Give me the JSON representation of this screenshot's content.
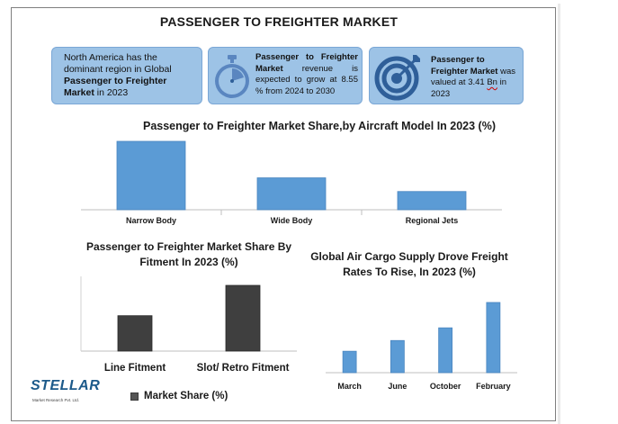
{
  "title": "PASSENGER TO FREIGHTER MARKET",
  "cards": {
    "region": {
      "pre": "North America has the dominant region in Global ",
      "bold": "Passenger to Freighter Market",
      "post": " in 2023"
    },
    "growth": {
      "bold": "Passenger to Freighter Market",
      "post": " revenue is expected to grow at 8.55 % from 2024 to 2030",
      "icon": "stopwatch-icon"
    },
    "valuation": {
      "bold": "Passenger to Freighter Market",
      "pre": " was valued at 3.41 ",
      "unit": "Bn",
      "post": " in 2023",
      "icon": "target-icon"
    }
  },
  "colors": {
    "blue_bar": "#5b9bd5",
    "dark_bar": "#3f3f3f",
    "card": "#9dc3e6"
  },
  "chart_data": [
    {
      "type": "bar",
      "title": "Passenger to Freighter Market Share,by Aircraft Model In 2023 (%)",
      "categories": [
        "Narrow Body",
        "Wide Body",
        "Regional Jets"
      ],
      "values": [
        60,
        28,
        16
      ],
      "ylim": [
        0,
        60
      ],
      "color": "#5b9bd5",
      "grid": false
    },
    {
      "type": "bar",
      "title": "Passenger to Freighter Market Share By Fitment In 2023 (%)",
      "categories": [
        "Line Fitment",
        "Slot/ Retro Fitment"
      ],
      "series": [
        {
          "name": "Market Share (%)",
          "values": [
            35,
            65
          ]
        }
      ],
      "ylim": [
        0,
        65
      ],
      "legend": "bottom",
      "color": "#3f3f3f",
      "grid": false
    },
    {
      "type": "bar",
      "title": "Global Air Cargo Supply Drove Freight Rates To Rise, In 2023 (%)",
      "categories": [
        "March",
        "June",
        "October",
        "February"
      ],
      "values": [
        22,
        33,
        46,
        72
      ],
      "ylim": [
        0,
        72
      ],
      "color": "#5b9bd5",
      "grid": false
    }
  ],
  "logo": {
    "name": "STELLAR",
    "sub": "Market Research Pvt. Ltd."
  }
}
